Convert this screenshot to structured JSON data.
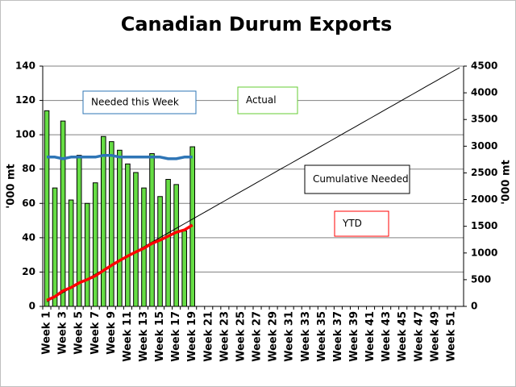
{
  "chart_data": {
    "type": "bar",
    "title": "Canadian Durum Exports",
    "ylabel": "'000 mt",
    "y2label": "'000 mt",
    "categories": [
      "Week 1",
      null,
      "Week 3",
      null,
      "Week 5",
      null,
      "Week 7",
      null,
      "Week 9",
      null,
      "Week 11",
      null,
      "Week 13",
      null,
      "Week 15",
      null,
      "Week 17",
      null,
      "Week 19",
      null,
      "Week 21",
      null,
      "Week 23",
      null,
      "Week 25",
      null,
      "Week 27",
      null,
      "Week 29",
      null,
      "Week 31",
      null,
      "Week 33",
      null,
      "Week 35",
      null,
      "Week 37",
      null,
      "Week 39",
      null,
      "Week 41",
      null,
      "Week 43",
      null,
      "Week 45",
      null,
      "Week 47",
      null,
      "Week 49",
      null,
      "Week 51",
      null
    ],
    "series": [
      {
        "name": "Actual",
        "type": "bar",
        "color": "#66dd44",
        "values": [
          114,
          69,
          108,
          62,
          88,
          60,
          72,
          99,
          96,
          91,
          83,
          78,
          69,
          89,
          64,
          74,
          71,
          44,
          93,
          null,
          null,
          null,
          null,
          null,
          null,
          null,
          null,
          null,
          null,
          null,
          null,
          null,
          null,
          null,
          null,
          null,
          null,
          null,
          null,
          null,
          null,
          null,
          null,
          null,
          null,
          null,
          null,
          null,
          null,
          null,
          null,
          null
        ]
      },
      {
        "name": "Cumulative Needed",
        "type": "line",
        "axis": "y2",
        "color": "#000000",
        "values": [
          86,
          172,
          258,
          344,
          430,
          516,
          602,
          688,
          774,
          860,
          946,
          1032,
          1118,
          1204,
          1290,
          1376,
          1462,
          1548,
          1634,
          1720,
          1806,
          1892,
          1978,
          2064,
          2150,
          2236,
          2322,
          2408,
          2494,
          2580,
          2666,
          2752,
          2838,
          2924,
          3010,
          3096,
          3182,
          3268,
          3354,
          3440,
          3526,
          3612,
          3698,
          3784,
          3870,
          3956,
          4042,
          4128,
          4214,
          4300,
          4386,
          4472
        ]
      },
      {
        "name": "Needed this Week",
        "type": "line",
        "color": "#2e75b6",
        "values": [
          87,
          87,
          86,
          87,
          87,
          87,
          87,
          88,
          88,
          87,
          87,
          87,
          87,
          87,
          87,
          86,
          86,
          87,
          87,
          null,
          null,
          null,
          null,
          null,
          null,
          null,
          null,
          null,
          null,
          null,
          null,
          null,
          null,
          null,
          null,
          null,
          null,
          null,
          null,
          null,
          null,
          null,
          null,
          null,
          null,
          null,
          null,
          null,
          null,
          null,
          null,
          null
        ]
      },
      {
        "name": "YTD",
        "type": "line",
        "axis": "y2",
        "color": "#ff0000",
        "values": [
          114,
          183,
          291,
          353,
          441,
          501,
          573,
          672,
          768,
          859,
          942,
          1020,
          1089,
          1178,
          1242,
          1316,
          1387,
          1431,
          1524,
          null,
          null,
          null,
          null,
          null,
          null,
          null,
          null,
          null,
          null,
          null,
          null,
          null,
          null,
          null,
          null,
          null,
          null,
          null,
          null,
          null,
          null,
          null,
          null,
          null,
          null,
          null,
          null,
          null,
          null,
          null,
          null,
          null
        ]
      }
    ],
    "ylim": [
      0,
      140
    ],
    "yticks": [
      0,
      20,
      40,
      60,
      80,
      100,
      120,
      140
    ],
    "y2lim": [
      0,
      4500
    ],
    "y2ticks": [
      0,
      500,
      1000,
      1500,
      2000,
      2500,
      3000,
      3500,
      4000,
      4500
    ],
    "grid": true
  }
}
